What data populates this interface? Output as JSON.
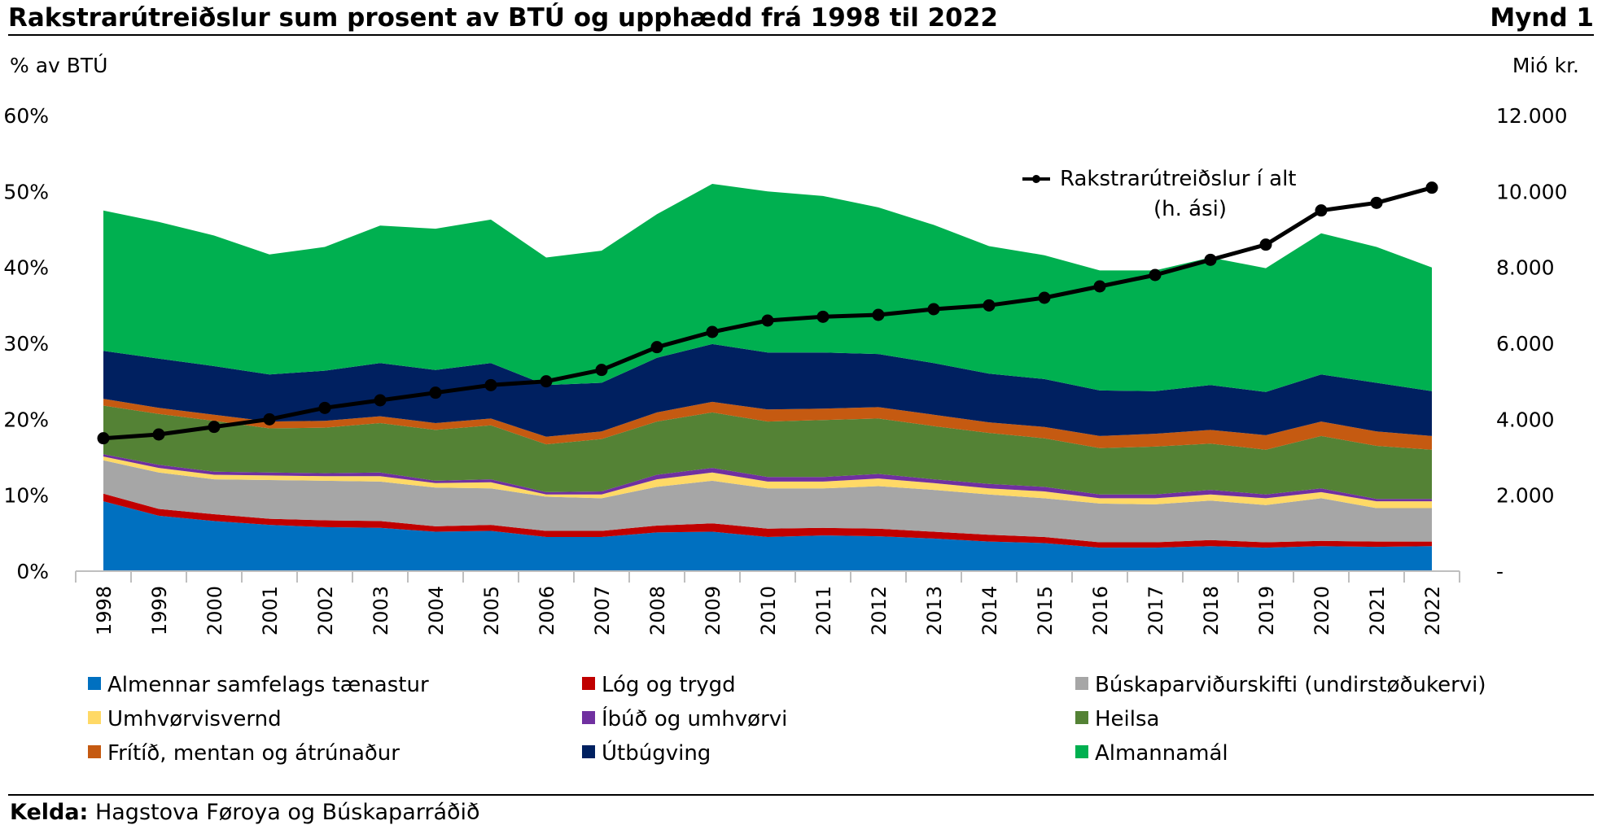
{
  "header": {
    "title": "Rakstrarútreiðslur sum prosent av BTÚ og upphædd frá 1998 til 2022",
    "figure": "Mynd 1"
  },
  "source": {
    "label": "Kelda:",
    "text": "Hagstova Føroya og Búskaparráðið"
  },
  "chart_data": {
    "type": "area",
    "title": "Rakstrarútreiðslur sum prosent av BTÚ og upphædd frá 1998 til 2022",
    "ylabel": "% av BTÚ",
    "y2label": "Mió kr.",
    "ylim": [
      0,
      60
    ],
    "y2lim": [
      0,
      12000
    ],
    "yticks": [
      "0%",
      "10%",
      "20%",
      "30%",
      "40%",
      "50%",
      "60%"
    ],
    "y2ticks": [
      "-",
      "2.000",
      "4.000",
      "6.000",
      "8.000",
      "10.000",
      "12.000"
    ],
    "categories": [
      "1998",
      "1999",
      "2000",
      "2001",
      "2002",
      "2003",
      "2004",
      "2005",
      "2006",
      "2007",
      "2008",
      "2009",
      "2010",
      "2011",
      "2012",
      "2013",
      "2014",
      "2015",
      "2016",
      "2017",
      "2018",
      "2019",
      "2020",
      "2021",
      "2022"
    ],
    "stacked": true,
    "legend_position": "bottom",
    "series": [
      {
        "name": "Almennar samfelags tænastur",
        "color": "#0070c0",
        "values": [
          9.2,
          7.3,
          6.6,
          6.1,
          5.8,
          5.7,
          5.2,
          5.3,
          4.5,
          4.5,
          5.1,
          5.2,
          4.5,
          4.7,
          4.6,
          4.3,
          3.9,
          3.7,
          3.1,
          3.1,
          3.3,
          3.1,
          3.3,
          3.2,
          3.3
        ]
      },
      {
        "name": "Lóg og trygd",
        "color": "#c00000",
        "values": [
          1.0,
          0.9,
          0.9,
          0.8,
          0.9,
          0.9,
          0.7,
          0.8,
          0.8,
          0.8,
          0.9,
          1.1,
          1.1,
          1.0,
          1.0,
          0.9,
          0.9,
          0.8,
          0.7,
          0.7,
          0.8,
          0.7,
          0.7,
          0.7,
          0.6
        ]
      },
      {
        "name": "Búskaparviðurskifti (undirstøðukervi)",
        "color": "#a6a6a6",
        "values": [
          4.4,
          4.8,
          4.6,
          5.1,
          5.2,
          5.2,
          5.1,
          4.8,
          4.5,
          4.3,
          5.1,
          5.6,
          5.3,
          5.2,
          5.6,
          5.5,
          5.3,
          5.1,
          5.1,
          5.0,
          5.2,
          4.9,
          5.6,
          4.4,
          4.4
        ]
      },
      {
        "name": "Umhvørvisvernd",
        "color": "#ffd966",
        "values": [
          0.5,
          0.6,
          0.6,
          0.6,
          0.6,
          0.7,
          0.6,
          0.8,
          0.3,
          0.5,
          1.0,
          1.1,
          0.9,
          0.9,
          1.0,
          0.9,
          0.8,
          0.9,
          0.7,
          0.8,
          0.8,
          0.9,
          0.8,
          0.9,
          0.9
        ]
      },
      {
        "name": "Íbúð og umhvørvi",
        "color": "#7030a0",
        "values": [
          0.3,
          0.4,
          0.4,
          0.4,
          0.4,
          0.5,
          0.3,
          0.4,
          0.3,
          0.4,
          0.6,
          0.6,
          0.6,
          0.6,
          0.6,
          0.5,
          0.6,
          0.6,
          0.5,
          0.5,
          0.6,
          0.5,
          0.5,
          0.3,
          0.3
        ]
      },
      {
        "name": "Heilsa",
        "color": "#548235",
        "values": [
          6.4,
          6.7,
          6.7,
          5.8,
          6.0,
          6.5,
          6.7,
          7.1,
          6.3,
          6.9,
          7.0,
          7.3,
          7.3,
          7.5,
          7.3,
          7.0,
          6.7,
          6.4,
          6.1,
          6.3,
          6.1,
          5.9,
          6.9,
          7.0,
          6.5
        ]
      },
      {
        "name": "Frítíð, mentan og átrúnaður",
        "color": "#c55a11",
        "values": [
          0.9,
          0.8,
          0.8,
          0.9,
          0.9,
          0.9,
          0.9,
          0.9,
          1.0,
          1.0,
          1.2,
          1.4,
          1.6,
          1.5,
          1.5,
          1.5,
          1.4,
          1.5,
          1.6,
          1.7,
          1.8,
          1.9,
          1.9,
          1.9,
          1.8
        ]
      },
      {
        "name": "Útbúgving",
        "color": "#002060",
        "values": [
          6.3,
          6.5,
          6.4,
          6.2,
          6.6,
          7.0,
          7.0,
          7.3,
          6.8,
          6.4,
          7.2,
          7.6,
          7.5,
          7.4,
          7.0,
          6.8,
          6.4,
          6.3,
          6.0,
          5.6,
          5.9,
          5.7,
          6.2,
          6.4,
          5.9
        ]
      },
      {
        "name": "Almannamál",
        "color": "#00b050",
        "values": [
          18.5,
          18.0,
          17.2,
          15.8,
          16.3,
          18.1,
          18.6,
          18.9,
          16.8,
          17.4,
          18.9,
          21.1,
          21.2,
          20.6,
          19.3,
          18.2,
          16.8,
          16.3,
          15.8,
          15.9,
          16.8,
          16.3,
          18.6,
          17.9,
          16.3
        ]
      }
    ],
    "line": {
      "name": "Rakstrarútreiðslur í alt",
      "name_line2": "(h. ási)",
      "axis": "right",
      "color": "#000000",
      "values": [
        3500,
        3600,
        3800,
        4000,
        4300,
        4500,
        4700,
        4900,
        5000,
        5300,
        5900,
        6300,
        6600,
        6700,
        6750,
        6900,
        7000,
        7200,
        7500,
        7800,
        8200,
        8600,
        9500,
        9700,
        10100
      ]
    }
  }
}
